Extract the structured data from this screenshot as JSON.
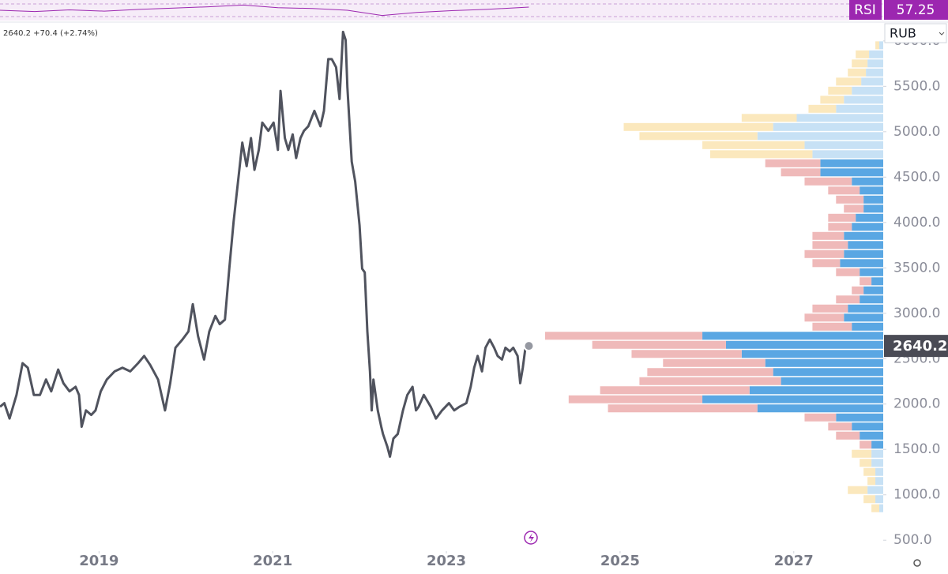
{
  "chart_data": [
    {
      "type": "line",
      "header": "2640.2 +70.4 (+2.74%)",
      "currency": "RUB",
      "x": [
        2017.86,
        2017.91,
        2017.97,
        2018.05,
        2018.12,
        2018.18,
        2018.25,
        2018.32,
        2018.39,
        2018.45,
        2018.53,
        2018.59,
        2018.66,
        2018.73,
        2018.77,
        2018.8,
        2018.85,
        2018.91,
        2018.96,
        2019.02,
        2019.09,
        2019.18,
        2019.27,
        2019.36,
        2019.45,
        2019.52,
        2019.59,
        2019.68,
        2019.76,
        2019.82,
        2019.88,
        2019.96,
        2020.03,
        2020.08,
        2020.14,
        2020.21,
        2020.27,
        2020.34,
        2020.39,
        2020.45,
        2020.5,
        2020.55,
        2020.61,
        2020.65,
        2020.7,
        2020.75,
        2020.79,
        2020.84,
        2020.88,
        2020.95,
        2021.01,
        2021.06,
        2021.09,
        2021.14,
        2021.18,
        2021.23,
        2021.27,
        2021.32,
        2021.36,
        2021.41,
        2021.48,
        2021.55,
        2021.59,
        2021.64,
        2021.68,
        2021.73,
        2021.77,
        2021.81,
        2021.84,
        2021.86,
        2021.91,
        2021.95,
        2022.0,
        2022.03,
        2022.06,
        2022.09,
        2022.12,
        2022.14,
        2022.16,
        2022.21,
        2022.25,
        2022.27,
        2022.32,
        2022.35,
        2022.39,
        2022.44,
        2022.5,
        2022.55,
        2022.61,
        2022.65,
        2022.68,
        2022.74,
        2022.82,
        2022.88,
        2022.95,
        2023.03,
        2023.09,
        2023.15,
        2023.23,
        2023.28,
        2023.32,
        2023.36,
        2023.41,
        2023.45,
        2023.5,
        2023.55,
        2023.59,
        2023.64,
        2023.68,
        2023.73,
        2023.77,
        2023.82,
        2023.85,
        2023.88,
        2023.91,
        2023.95
      ],
      "series": [
        {
          "color": "#50535e",
          "values": [
            1970,
            2010,
            1840,
            2100,
            2450,
            2400,
            2100,
            2100,
            2270,
            2140,
            2380,
            2230,
            2140,
            2190,
            2100,
            1750,
            1930,
            1880,
            1930,
            2140,
            2270,
            2360,
            2400,
            2360,
            2450,
            2530,
            2430,
            2270,
            1930,
            2230,
            2620,
            2710,
            2800,
            3100,
            2750,
            2490,
            2800,
            2970,
            2880,
            2930,
            3490,
            4010,
            4530,
            4880,
            4620,
            4930,
            4580,
            4800,
            5100,
            5010,
            5100,
            4800,
            5450,
            4930,
            4800,
            4970,
            4710,
            4930,
            5010,
            5060,
            5230,
            5060,
            5230,
            5800,
            5800,
            5710,
            5360,
            6100,
            6010,
            5490,
            4670,
            4450,
            3970,
            3490,
            3450,
            2800,
            2360,
            1930,
            2270,
            1930,
            1750,
            1670,
            1530,
            1420,
            1620,
            1670,
            1930,
            2100,
            2190,
            1930,
            1970,
            2100,
            1970,
            1840,
            1930,
            2010,
            1930,
            1970,
            2010,
            2190,
            2400,
            2530,
            2360,
            2620,
            2710,
            2620,
            2530,
            2490,
            2620,
            2580,
            2620,
            2530,
            2230,
            2400,
            2620,
            2640.2
          ]
        }
      ],
      "last_price": {
        "value": 2640.2,
        "label": "2640.2",
        "color": "#4a4b55"
      },
      "xlim": [
        2017.86,
        2028.03
      ],
      "ylim": [
        380,
        6190
      ],
      "xticks": [
        2019,
        2021,
        2023,
        2025,
        2027
      ],
      "yticks": [
        {
          "value": 500,
          "label": "500.0"
        },
        {
          "value": 1000,
          "label": "1000.0"
        },
        {
          "value": 1500,
          "label": "1500.0"
        },
        {
          "value": 2000,
          "label": "2000.0"
        },
        {
          "value": 2500,
          "label": "2500.0"
        },
        {
          "value": 3000,
          "label": "3000.0"
        },
        {
          "value": 3500,
          "label": "3500.0"
        },
        {
          "value": 4000,
          "label": "4000.0"
        },
        {
          "value": 4500,
          "label": "4500.0"
        },
        {
          "value": 5000,
          "label": "5000.0"
        },
        {
          "value": 5500,
          "label": "5500.0"
        },
        {
          "value": 6000,
          "label": "6000.0"
        }
      ]
    },
    {
      "type": "volume-profile",
      "levels": [
        5900,
        5800,
        5700,
        5600,
        5500,
        5400,
        5300,
        5200,
        5100,
        5000,
        4900,
        4800,
        4700,
        4600,
        4500,
        4400,
        4300,
        4200,
        4100,
        4000,
        3900,
        3800,
        3700,
        3600,
        3500,
        3400,
        3300,
        3200,
        3100,
        3000,
        2900,
        2800,
        2700,
        2600,
        2500,
        2400,
        2300,
        2200,
        2100,
        2000,
        1900,
        1800,
        1700,
        1600,
        1500,
        1400,
        1300,
        1200,
        1100,
        1000,
        900,
        800
      ],
      "value_area": [
        1500,
        4700
      ],
      "vlim": [
        0,
        440
      ],
      "series": [
        {
          "color": "#5aa7e3",
          "muted_color": "#c7e1f5",
          "values": [
            5,
            18,
            20,
            22,
            28,
            40,
            50,
            60,
            110,
            140,
            160,
            100,
            90,
            80,
            80,
            40,
            30,
            25,
            25,
            35,
            40,
            50,
            45,
            50,
            55,
            30,
            15,
            25,
            30,
            45,
            50,
            40,
            230,
            200,
            180,
            150,
            140,
            130,
            170,
            230,
            160,
            60,
            40,
            30,
            15,
            15,
            15,
            10,
            10,
            20,
            10,
            5
          ]
        },
        {
          "color": "#efb9b9",
          "muted_color": "#fbe8bd",
          "values": [
            5,
            17,
            20,
            23,
            32,
            30,
            30,
            35,
            70,
            190,
            150,
            130,
            130,
            70,
            50,
            60,
            40,
            35,
            25,
            35,
            30,
            40,
            45,
            50,
            35,
            30,
            15,
            15,
            30,
            45,
            50,
            50,
            200,
            170,
            140,
            130,
            160,
            180,
            190,
            170,
            190,
            40,
            30,
            30,
            15,
            25,
            15,
            15,
            10,
            25,
            15,
            10
          ]
        }
      ]
    },
    {
      "type": "line",
      "title": "RSI",
      "last": 57.25,
      "color": "#9c27b0",
      "ylim": [
        30,
        70
      ],
      "x": [
        2017.86,
        2018.26,
        2018.66,
        2019.06,
        2019.46,
        2019.86,
        2020.26,
        2020.66,
        2021.06,
        2021.46,
        2021.86,
        2022.26,
        2022.66,
        2023.06,
        2023.46,
        2023.95
      ],
      "series": [
        {
          "color": "#9c27b0",
          "values": [
            50,
            47,
            51,
            48,
            52,
            55,
            58,
            62,
            56,
            54,
            50,
            38,
            45,
            49,
            52,
            57.25
          ]
        }
      ]
    }
  ]
}
